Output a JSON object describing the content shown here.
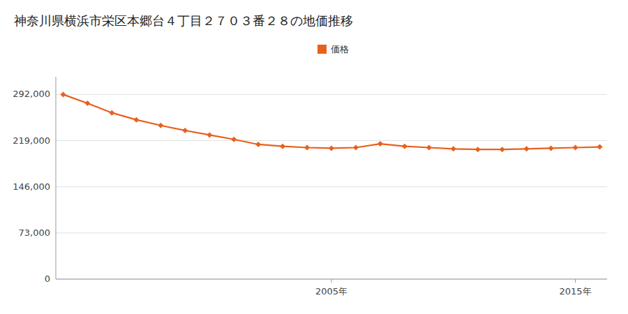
{
  "chart_data": {
    "type": "line",
    "title": "神奈川県横浜市栄区本郷台４丁目２７０３番２８の地価推移",
    "x": [
      1994,
      1995,
      1996,
      1997,
      1998,
      1999,
      2000,
      2001,
      2002,
      2003,
      2004,
      2005,
      2006,
      2007,
      2008,
      2009,
      2010,
      2011,
      2012,
      2013,
      2014,
      2015,
      2016
    ],
    "series": [
      {
        "name": "価格",
        "color": "#e8601c",
        "marker": "diamond",
        "values": [
          292000,
          278000,
          263000,
          252000,
          243000,
          235000,
          228000,
          221000,
          213000,
          210000,
          208000,
          207000,
          208000,
          214000,
          210000,
          208000,
          206000,
          205000,
          205000,
          206000,
          207000,
          208000,
          209000
        ]
      }
    ],
    "xlim": [
      1993.7,
      2016.3
    ],
    "xticks": [
      {
        "value": 2005,
        "label": "2005年"
      },
      {
        "value": 2015,
        "label": "2015年"
      }
    ],
    "ylim": [
      0,
      320000
    ],
    "yticks": [
      0,
      {
        "value": 73000,
        "label": "73,000"
      },
      {
        "value": 146000,
        "label": "146,000"
      },
      {
        "value": 219000,
        "label": "219,000"
      },
      {
        "value": 292000,
        "label": "292,000"
      }
    ],
    "grid": true,
    "legend": "top"
  }
}
